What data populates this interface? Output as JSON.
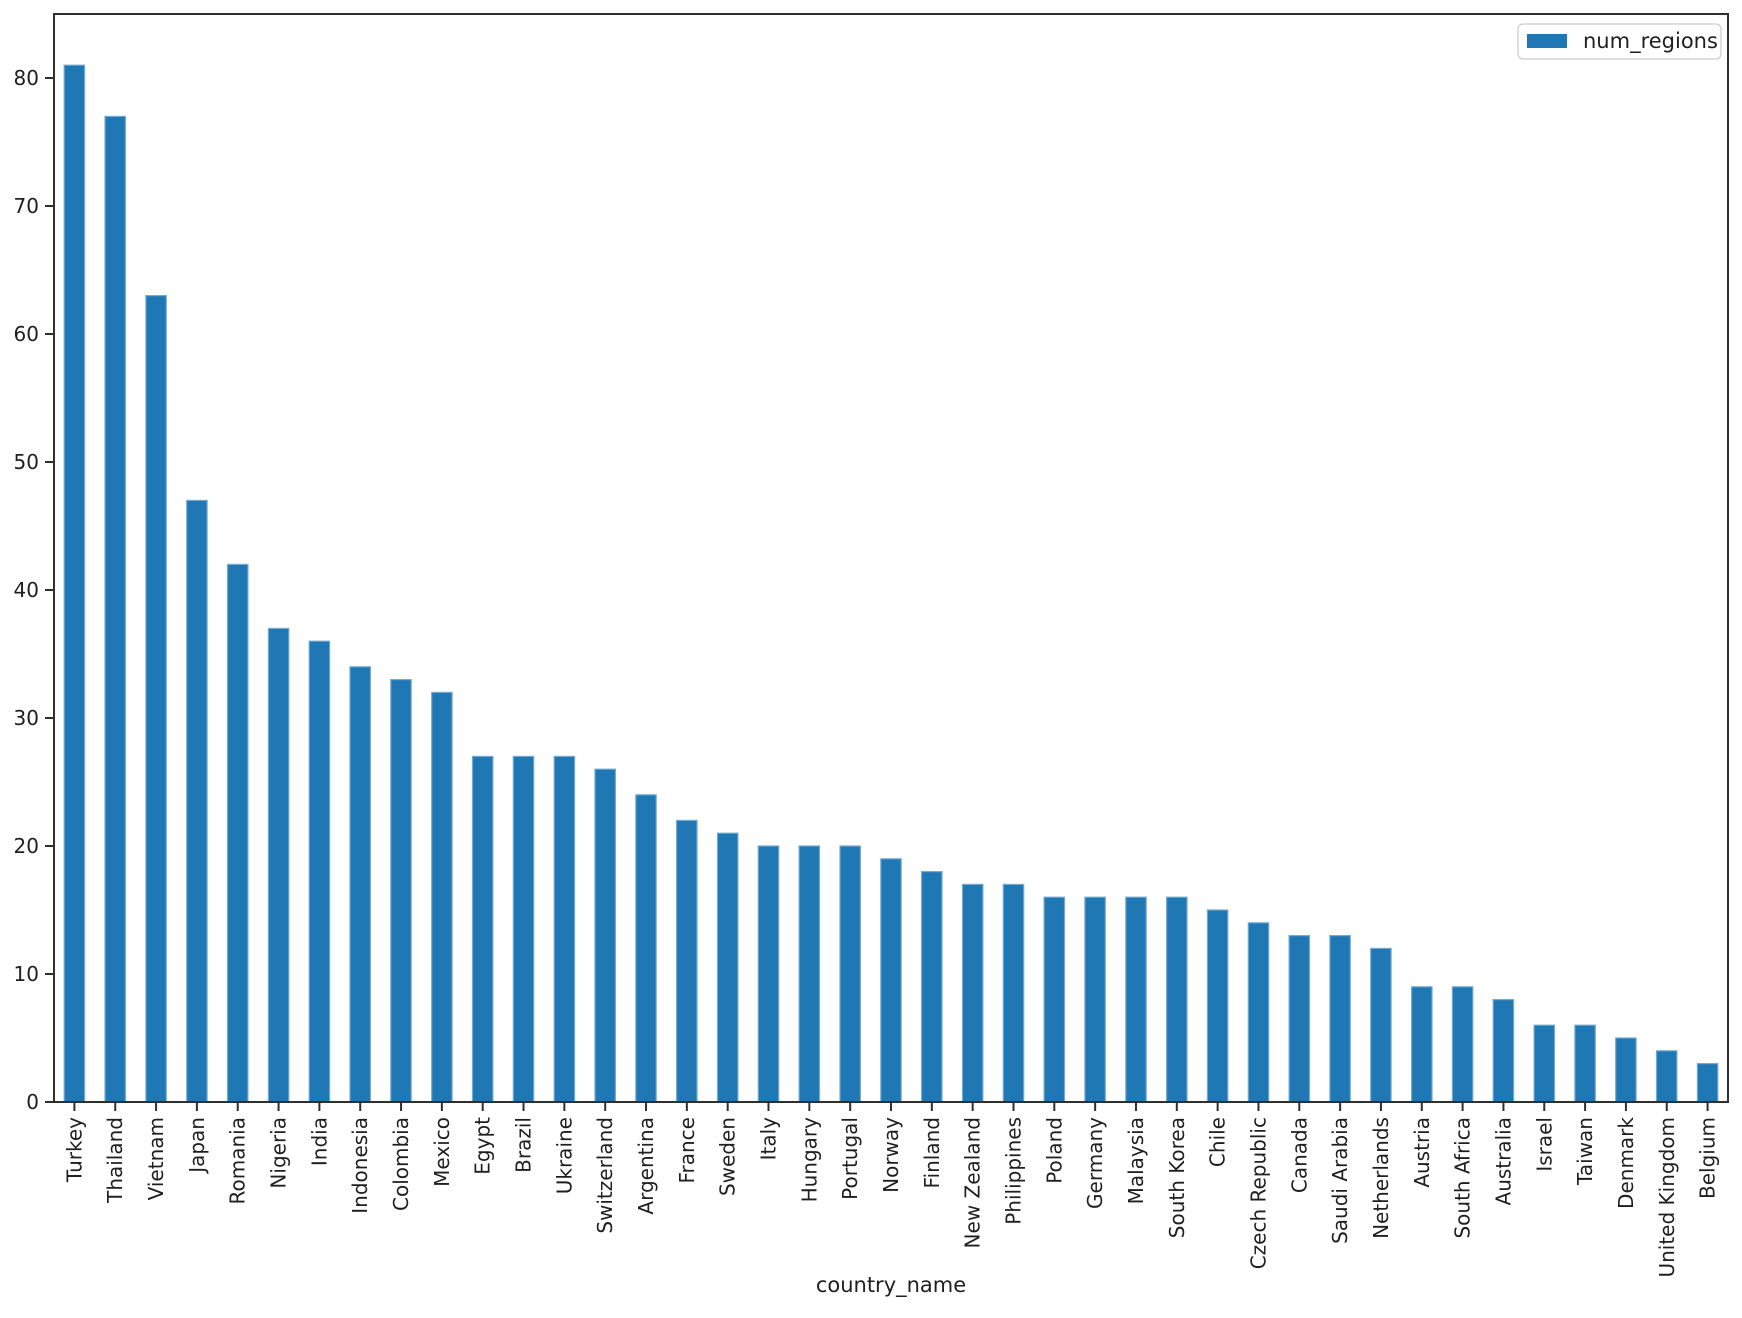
{
  "figure": {
    "background": "#ffffff"
  },
  "chart_data": {
    "type": "bar",
    "title": "",
    "xlabel": "country_name",
    "ylabel": "",
    "categories": [
      "Turkey",
      "Thailand",
      "Vietnam",
      "Japan",
      "Romania",
      "Nigeria",
      "India",
      "Indonesia",
      "Colombia",
      "Mexico",
      "Egypt",
      "Brazil",
      "Ukraine",
      "Switzerland",
      "Argentina",
      "France",
      "Sweden",
      "Italy",
      "Hungary",
      "Portugal",
      "Norway",
      "Finland",
      "New Zealand",
      "Philippines",
      "Poland",
      "Germany",
      "Malaysia",
      "South Korea",
      "Chile",
      "Czech Republic",
      "Canada",
      "Saudi Arabia",
      "Netherlands",
      "Austria",
      "South Africa",
      "Australia",
      "Israel",
      "Taiwan",
      "Denmark",
      "United Kingdom",
      "Belgium"
    ],
    "series": [
      {
        "name": "num_regions",
        "values": [
          81,
          77,
          63,
          47,
          42,
          37,
          36,
          34,
          33,
          32,
          27,
          27,
          27,
          26,
          24,
          22,
          21,
          20,
          20,
          20,
          19,
          18,
          17,
          17,
          16,
          16,
          16,
          16,
          15,
          14,
          13,
          13,
          12,
          9,
          9,
          8,
          6,
          6,
          5,
          4,
          3
        ]
      }
    ],
    "ylim": [
      0,
      85
    ],
    "yticks": [
      0,
      10,
      20,
      30,
      40,
      50,
      60,
      70,
      80
    ],
    "grid": false,
    "legend_position": "upper right",
    "bar_color": "#1f77b4",
    "bar_edge_color": "#74a9d0",
    "axis_color": "#2f2f2f",
    "text_color": "#1f1f1f",
    "legend_border_color": "#cccccc"
  }
}
